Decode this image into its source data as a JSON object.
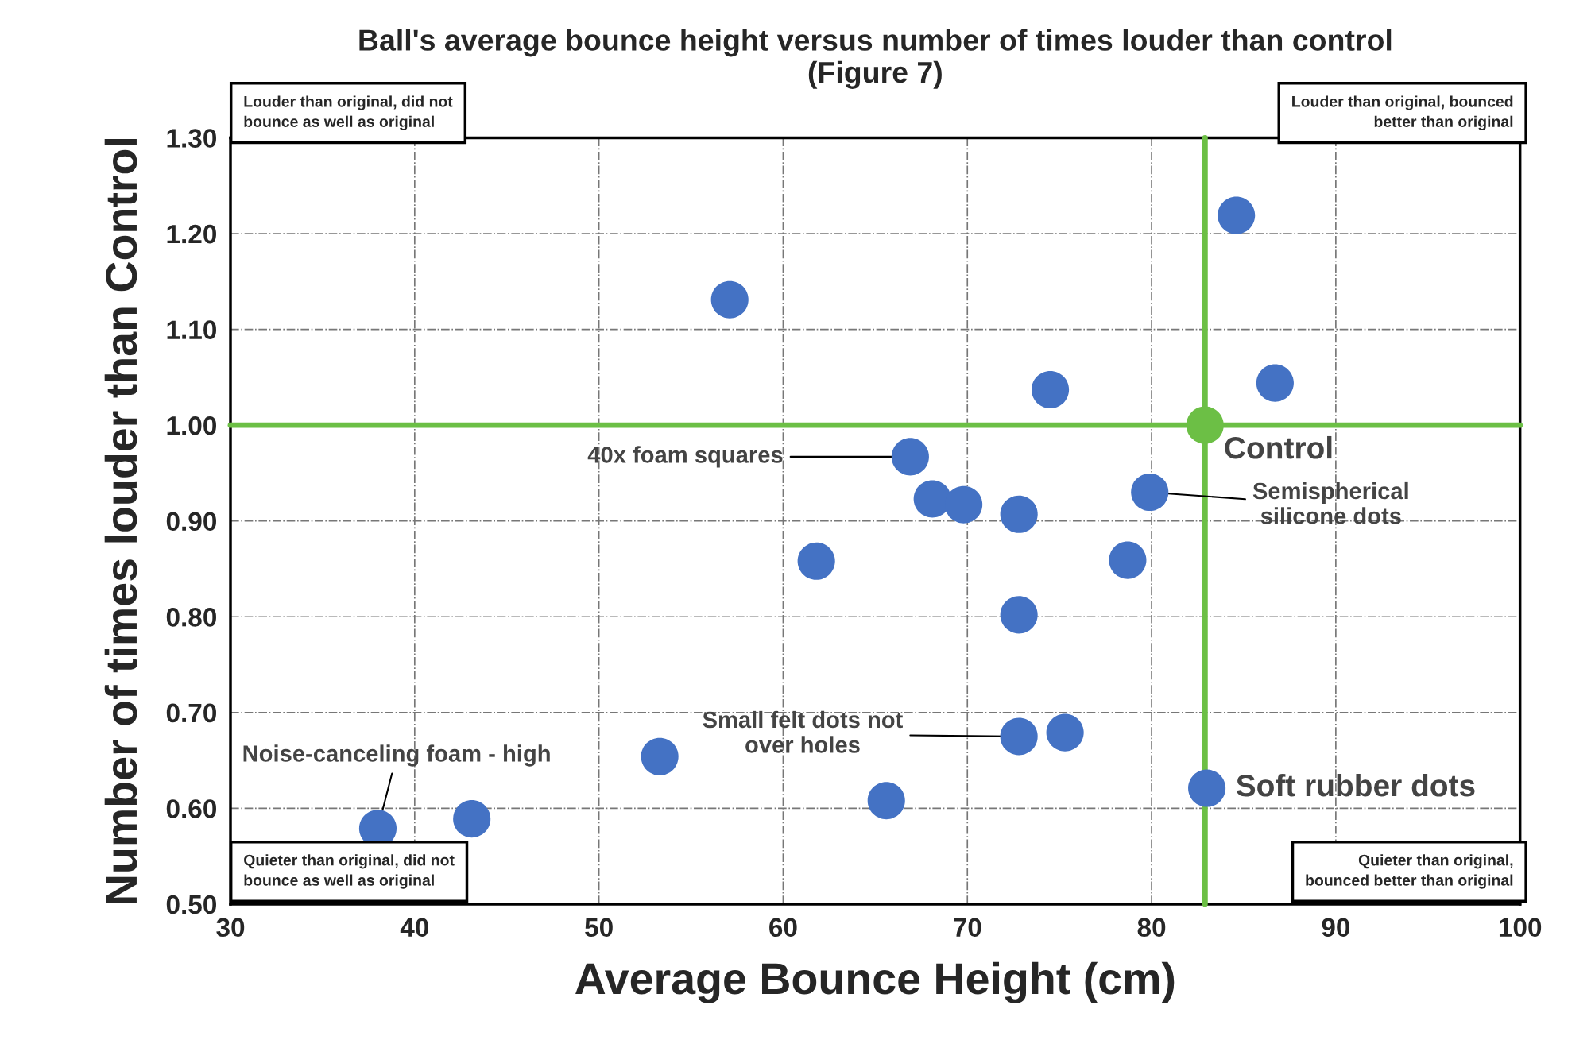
{
  "chart_data": {
    "type": "scatter",
    "title": "Ball's average bounce height versus number of times louder than control\n(Figure 7)",
    "xlabel": "Average Bounce Height (cm)",
    "ylabel": "Number of times louder than Control",
    "series": [
      {
        "color": "#4472c4",
        "x": [
          57.1,
          84.6,
          74.5,
          86.7,
          66.9,
          68.1,
          69.8,
          72.8,
          79.9,
          61.8,
          78.7,
          72.8,
          72.8,
          75.3,
          53.3,
          65.6,
          43.1,
          38.0,
          83.0
        ],
        "values": [
          1.131,
          1.219,
          1.037,
          1.044,
          0.967,
          0.923,
          0.917,
          0.907,
          0.93,
          0.858,
          0.859,
          0.802,
          0.675,
          0.679,
          0.654,
          0.608,
          0.589,
          0.579,
          0.621
        ]
      },
      {
        "color": "#6cbf45",
        "x": [
          82.9
        ],
        "values": [
          1.0
        ]
      }
    ],
    "marker": "circle",
    "xlim": [
      30,
      100
    ],
    "ylim": [
      0.5,
      1.3
    ],
    "xticks": [
      30,
      40,
      50,
      60,
      70,
      80,
      90,
      100
    ],
    "yticks": [
      {
        "value": 0.5,
        "label": "0.50"
      },
      {
        "value": 0.6,
        "label": "0.60"
      },
      {
        "value": 0.7,
        "label": "0.70"
      },
      {
        "value": 0.8,
        "label": "0.80"
      },
      {
        "value": 0.9,
        "label": "0.90"
      },
      {
        "value": 1.0,
        "label": "1.00"
      },
      {
        "value": 1.1,
        "label": "1.10"
      },
      {
        "value": 1.2,
        "label": "1.20"
      },
      {
        "value": 1.3,
        "label": "1.30"
      }
    ],
    "grid": true,
    "ref_lines": [
      {
        "axis": "x",
        "value": 82.9,
        "color": "#6cbf45"
      },
      {
        "axis": "y",
        "value": 1.0,
        "color": "#6cbf45"
      }
    ],
    "annotations": [
      "Louder than original, did not\nbounce as well as original",
      "Louder than original, bounced\nbetter than original",
      "Quieter than original, did not\nbounce as well as original",
      "Quieter than original,\nbounced better than original",
      {
        "text": "40x foam squares",
        "x": 66.9,
        "y": 0.967
      },
      {
        "text": "Semispherical\nsilicone dots",
        "x": 79.9,
        "y": 0.93
      },
      {
        "text": "Control",
        "x": 82.9,
        "y": 1.0
      },
      {
        "text": "Small felt dots not\nover holes",
        "x": 72.8,
        "y": 0.675
      },
      {
        "text": "Noise-canceling foam - high",
        "x": 38.0,
        "y": 0.579
      },
      {
        "text": "Soft rubber dots",
        "x": 83.0,
        "y": 0.621
      }
    ]
  }
}
